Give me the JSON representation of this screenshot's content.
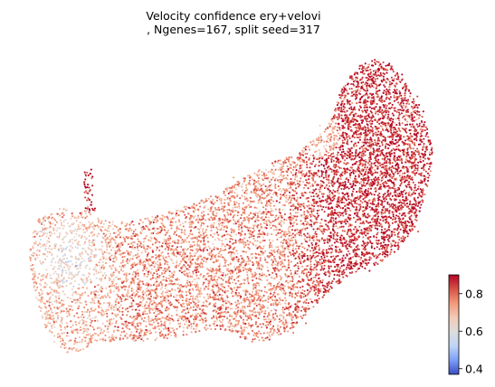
{
  "chart_data": {
    "type": "scatter",
    "title_line1": "Velocity confidence ery+velovi",
    "title_line2": ", Ngenes=167, split seed=317",
    "xlabel": "",
    "ylabel": "",
    "axes_visible": false,
    "grid": false,
    "colorbar": {
      "colormap": "coolwarm",
      "placement": "bottom-right",
      "vmin": 0.37,
      "vmax": 0.9,
      "ticks": [
        0.4,
        0.6,
        0.8
      ],
      "tick_labels": [
        "0.4",
        "0.6",
        "0.8"
      ],
      "colors": [
        "#3b4cc0",
        "#7b9ff9",
        "#c0d4f5",
        "#dddcdc",
        "#f2cbb7",
        "#f49a7b",
        "#d65244",
        "#b40426"
      ]
    },
    "point_count_estimate": 9000,
    "regions": [
      {
        "name": "right-cluster",
        "typical_confidence": 0.85
      },
      {
        "name": "central-band",
        "typical_confidence": 0.76
      },
      {
        "name": "lower-left-lobe",
        "typical_confidence": 0.72
      },
      {
        "name": "left-cluster",
        "typical_confidence": 0.58
      },
      {
        "name": "top-left-spike",
        "typical_confidence": 0.88
      }
    ]
  }
}
